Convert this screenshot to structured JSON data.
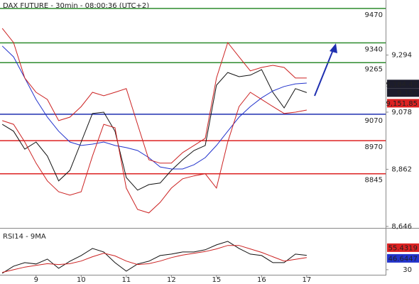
{
  "chart_data": [
    {
      "type": "line",
      "title": "DAX FUTURE - 30min - 08:00:36 (UTC+2)",
      "x": [
        0.25,
        0.5,
        0.75,
        1.0,
        1.25,
        1.5,
        1.75,
        2.0,
        2.25,
        2.5,
        2.75,
        3.0,
        3.25,
        3.5,
        3.75,
        4.0,
        4.25,
        4.5,
        4.75,
        5.0,
        5.25,
        5.5,
        5.75,
        6.0,
        6.25,
        6.5,
        6.75,
        7.0
      ],
      "xlim": [
        0.2,
        8.75
      ],
      "series": [
        {
          "color": "#111111",
          "values": [
            9032,
            9006,
            8938,
            8965,
            8912,
            8818,
            8858,
            8965,
            9073,
            9078,
            9006,
            8831,
            8783,
            8804,
            8810,
            8858,
            8898,
            8933,
            8952,
            9180,
            9228,
            9212,
            9218,
            9239,
            9153,
            9094,
            9167,
            9152
          ]
        },
        {
          "color": "#2233cc",
          "values": [
            9328,
            9287,
            9207,
            9126,
            9059,
            9006,
            8965,
            8952,
            8957,
            8965,
            8952,
            8944,
            8933,
            8906,
            8871,
            8863,
            8863,
            8879,
            8906,
            8952,
            9006,
            9059,
            9099,
            9132,
            9158,
            9175,
            9185,
            9188
          ]
        },
        {
          "color": "#cc2222",
          "values": [
            9395,
            9341,
            9207,
            9153,
            9126,
            9046,
            9059,
            9099,
            9153,
            9140,
            9153,
            9167,
            9032,
            8898,
            8885,
            8885,
            8925,
            8952,
            8979,
            9207,
            9341,
            9287,
            9234,
            9247,
            9255,
            9247,
            9207,
            9207
          ]
        },
        {
          "color": "#cc2222",
          "values": [
            9046,
            9032,
            8965,
            8885,
            8818,
            8777,
            8764,
            8777,
            8912,
            9032,
            9019,
            8791,
            8710,
            8697,
            8737,
            8791,
            8826,
            8837,
            8845,
            8791,
            8965,
            9099,
            9153,
            9126,
            9099,
            9073,
            9078,
            9086
          ]
        }
      ],
      "ylim": [
        8643,
        9502
      ],
      "yticks": [
        {
          "value": 8646,
          "label": "8,646"
        },
        {
          "value": 8862,
          "label": "8,862"
        },
        {
          "value": 9078,
          "label": "9,078"
        },
        {
          "value": 9294,
          "label": "9,294"
        }
      ],
      "levels": [
        {
          "value": 9470,
          "color": "#2e8b2e"
        },
        {
          "value": 9340,
          "color": "#2e8b2e"
        },
        {
          "value": 9265,
          "color": "#2e8b2e"
        },
        {
          "value": 9070,
          "color": "#1f2fb0"
        },
        {
          "value": 8970,
          "color": "#dd2222"
        },
        {
          "value": 8845,
          "color": "#dd2222"
        }
      ],
      "markers": [
        {
          "value": 9184.42,
          "label": "9,184.42",
          "color": "#1c1c2c"
        },
        {
          "value": 9152,
          "label": "9,152",
          "color": "#1c1c2c"
        },
        {
          "value": 9151.85,
          "label": "9,151.85",
          "color": "#dd2222"
        }
      ]
    },
    {
      "type": "line",
      "title": "RSI14 - 9MA",
      "x": [
        0.25,
        0.5,
        0.75,
        1.0,
        1.25,
        1.5,
        1.75,
        2.0,
        2.25,
        2.5,
        2.75,
        3.0,
        3.25,
        3.5,
        3.75,
        4.0,
        4.25,
        4.5,
        4.75,
        5.0,
        5.25,
        5.5,
        5.75,
        6.0,
        6.25,
        6.5,
        6.75,
        7.0
      ],
      "xlim": [
        0.2,
        8.75
      ],
      "xticks": [
        {
          "value": 1,
          "label": "9"
        },
        {
          "value": 2,
          "label": "10"
        },
        {
          "value": 3,
          "label": "11"
        },
        {
          "value": 4,
          "label": "12"
        },
        {
          "value": 5,
          "label": "15"
        },
        {
          "value": 6,
          "label": "16"
        },
        {
          "value": 7,
          "label": "17"
        }
      ],
      "series": [
        {
          "color": "#111111",
          "values": [
            25.9,
            34.1,
            38.2,
            36.6,
            42.3,
            31.6,
            39.8,
            46.4,
            54.6,
            50.5,
            38.2,
            28.4,
            36.6,
            39.8,
            46.4,
            48.0,
            50.5,
            50.5,
            53.0,
            58.7,
            62.8,
            54.6,
            48.0,
            46.4,
            38.2,
            38.2,
            48.0,
            46.6
          ]
        },
        {
          "color": "#cc2222",
          "values": [
            27,
            30,
            33,
            35,
            37,
            36,
            37,
            40,
            45,
            49,
            46,
            40,
            36,
            37,
            40,
            44,
            47,
            49,
            51,
            54,
            58,
            58,
            54,
            50,
            45,
            40,
            42,
            44
          ]
        }
      ],
      "ylim": [
        25,
        75
      ],
      "yticks": [
        30
      ],
      "markers": [
        {
          "value": 55.4319,
          "label": "55.4319",
          "color": "#dd2222"
        },
        {
          "value": 46.6447,
          "label": "46.6447",
          "color": "#2233cc"
        }
      ]
    }
  ]
}
